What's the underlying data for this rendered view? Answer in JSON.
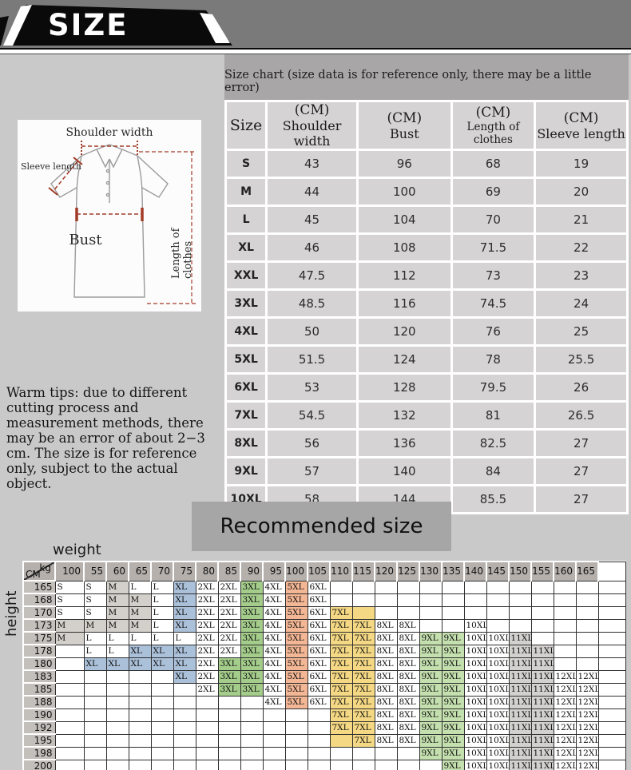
{
  "header": {
    "title": "SIZE"
  },
  "size_chart": {
    "banner": "Size chart (size data is for reference only, there may be a little error)",
    "size_header": "Size",
    "columns": [
      {
        "unit": "(CM)",
        "label": "Shoulder width"
      },
      {
        "unit": "(CM)",
        "label": "Bust"
      },
      {
        "unit": "(CM)",
        "label": "Length of clothes"
      },
      {
        "unit": "(CM)",
        "label": "Sleeve length"
      }
    ],
    "rows": [
      {
        "size": "S",
        "values": [
          "43",
          "96",
          "68",
          "19"
        ]
      },
      {
        "size": "M",
        "values": [
          "44",
          "100",
          "69",
          "20"
        ]
      },
      {
        "size": "L",
        "values": [
          "45",
          "104",
          "70",
          "21"
        ]
      },
      {
        "size": "XL",
        "values": [
          "46",
          "108",
          "71.5",
          "22"
        ]
      },
      {
        "size": "XXL",
        "values": [
          "47.5",
          "112",
          "73",
          "23"
        ]
      },
      {
        "size": "3XL",
        "values": [
          "48.5",
          "116",
          "74.5",
          "24"
        ]
      },
      {
        "size": "4XL",
        "values": [
          "50",
          "120",
          "76",
          "25"
        ]
      },
      {
        "size": "5XL",
        "values": [
          "51.5",
          "124",
          "78",
          "25.5"
        ]
      },
      {
        "size": "6XL",
        "values": [
          "53",
          "128",
          "79.5",
          "26"
        ]
      },
      {
        "size": "7XL",
        "values": [
          "54.5",
          "132",
          "81",
          "26.5"
        ]
      },
      {
        "size": "8XL",
        "values": [
          "56",
          "136",
          "82.5",
          "27"
        ]
      },
      {
        "size": "9XL",
        "values": [
          "57",
          "140",
          "84",
          "27"
        ]
      },
      {
        "size": "10XL",
        "values": [
          "58",
          "144",
          "85.5",
          "27"
        ]
      }
    ]
  },
  "diagram": {
    "shoulder_label": "Shoulder width",
    "sleeve_label": "Sleeve length",
    "bust_label": "Bust",
    "length_label": "Length of clothes"
  },
  "tips": {
    "text": "Warm tips: due to different cutting process and measurement methods, there may be an error of about 2−3 cm. The size is for reference only, subject to the actual object."
  },
  "recommended": {
    "title": "Recommended size",
    "weight_label": "weight",
    "height_label": "height",
    "kg_label": "kg",
    "cm_label": "CM",
    "weights": [
      "100",
      "55",
      "60",
      "65",
      "70",
      "75",
      "80",
      "85",
      "90",
      "95",
      "100",
      "105",
      "110",
      "115",
      "120",
      "125",
      "130",
      "135",
      "140",
      "145",
      "150",
      "155",
      "160",
      "165",
      ""
    ],
    "rows": [
      {
        "height": "165",
        "cells": [
          "S",
          "S",
          "M",
          "L",
          "L",
          "XL",
          "2XL",
          "2XL",
          "3XL",
          "4XL",
          "5XL",
          "6XL",
          "",
          "",
          "",
          "",
          "",
          "",
          "",
          "",
          "",
          "",
          "",
          "",
          ""
        ]
      },
      {
        "height": "168",
        "cells": [
          "S",
          "S",
          "M",
          "M",
          "L",
          "XL",
          "2XL",
          "2XL",
          "3XL",
          "4XL",
          "5XL",
          "6XL",
          "",
          "",
          "",
          "",
          "",
          "",
          "",
          "",
          "",
          "",
          "",
          "",
          ""
        ]
      },
      {
        "height": "170",
        "cells": [
          "S",
          "S",
          "M",
          "M",
          "L",
          "XL",
          "2XL",
          "2XL",
          "3XL",
          "4XL",
          "5XL",
          "6XL",
          "7XL",
          "",
          "",
          "",
          "",
          "",
          "",
          "",
          "",
          "",
          "",
          "",
          ""
        ]
      },
      {
        "height": "173",
        "cells": [
          "M",
          "M",
          "M",
          "M",
          "L",
          "XL",
          "2XL",
          "2XL",
          "3XL",
          "4XL",
          "5XL",
          "6XL",
          "7XL",
          "7XL",
          "8XL",
          "8XL",
          "",
          "",
          "10XL",
          "",
          "",
          "",
          "",
          "",
          ""
        ]
      },
      {
        "height": "175",
        "cells": [
          "M",
          "L",
          "L",
          "L",
          "L",
          "L",
          "2XL",
          "2XL",
          "3XL",
          "4XL",
          "5XL",
          "6XL",
          "7XL",
          "7XL",
          "8XL",
          "8XL",
          "9XL",
          "9XL",
          "10XL",
          "10XL",
          "11XL",
          "",
          "",
          "",
          ""
        ]
      },
      {
        "height": "178",
        "cells": [
          "",
          "L",
          "L",
          "XL",
          "XL",
          "XL",
          "2XL",
          "2XL",
          "3XL",
          "4XL",
          "5XL",
          "6XL",
          "7XL",
          "7XL",
          "8XL",
          "8XL",
          "9XL",
          "9XL",
          "10XL",
          "10XL",
          "11XL",
          "11XL",
          "",
          "",
          ""
        ]
      },
      {
        "height": "180",
        "cells": [
          "",
          "XL",
          "XL",
          "XL",
          "XL",
          "XL",
          "2XL",
          "3XL",
          "3XL",
          "4XL",
          "5XL",
          "6XL",
          "7XL",
          "7XL",
          "8XL",
          "8XL",
          "9XL",
          "9XL",
          "10XL",
          "10XL",
          "11XL",
          "11XL",
          "",
          "",
          ""
        ]
      },
      {
        "height": "183",
        "cells": [
          "",
          "",
          "",
          "",
          "",
          "XL",
          "2XL",
          "3XL",
          "3XL",
          "4XL",
          "5XL",
          "6XL",
          "7XL",
          "7XL",
          "8XL",
          "8XL",
          "9XL",
          "9XL",
          "10XL",
          "10XL",
          "11XL",
          "11XL",
          "12XL",
          "12XL",
          ""
        ]
      },
      {
        "height": "185",
        "cells": [
          "",
          "",
          "",
          "",
          "",
          "",
          "2XL",
          "3XL",
          "3XL",
          "4XL",
          "5XL",
          "6XL",
          "7XL",
          "7XL",
          "8XL",
          "8XL",
          "9XL",
          "9XL",
          "10XL",
          "10XL",
          "11XL",
          "11XL",
          "12XL",
          "12XL",
          ""
        ]
      },
      {
        "height": "188",
        "cells": [
          "",
          "",
          "",
          "",
          "",
          "",
          "",
          "",
          "",
          "4XL",
          "5XL",
          "6XL",
          "7XL",
          "7XL",
          "8XL",
          "8XL",
          "9XL",
          "9XL",
          "10XL",
          "10XL",
          "11XL",
          "11XL",
          "12XL",
          "12XL",
          ""
        ]
      },
      {
        "height": "190",
        "cells": [
          "",
          "",
          "",
          "",
          "",
          "",
          "",
          "",
          "",
          "",
          "",
          "",
          "7XL",
          "7XL",
          "8XL",
          "8XL",
          "9XL",
          "9XL",
          "10XL",
          "10XL",
          "11XL",
          "11XL",
          "12XL",
          "12XL",
          ""
        ]
      },
      {
        "height": "192",
        "cells": [
          "",
          "",
          "",
          "",
          "",
          "",
          "",
          "",
          "",
          "",
          "",
          "",
          "7XL",
          "7XL",
          "8XL",
          "8XL",
          "9XL",
          "9XL",
          "10XL",
          "10XL",
          "11XL",
          "11XL",
          "12XL",
          "12XL",
          ""
        ]
      },
      {
        "height": "195",
        "cells": [
          "",
          "",
          "",
          "",
          "",
          "",
          "",
          "",
          "",
          "",
          "",
          "",
          "",
          "7XL",
          "8XL",
          "8XL",
          "9XL",
          "9XL",
          "10XL",
          "10XL",
          "11XL",
          "11XL",
          "12XL",
          "12XL",
          ""
        ]
      },
      {
        "height": "198",
        "cells": [
          "",
          "",
          "",
          "",
          "",
          "",
          "",
          "",
          "",
          "",
          "",
          "",
          "",
          "",
          "",
          "",
          "9XL",
          "9XL",
          "10XL",
          "10XL",
          "11XL",
          "11XL",
          "12XL",
          "12XL",
          ""
        ]
      },
      {
        "height": "200",
        "cells": [
          "",
          "",
          "",
          "",
          "",
          "",
          "",
          "",
          "",
          "",
          "",
          "",
          "",
          "",
          "",
          "",
          "",
          "9XL",
          "10XL",
          "10XL",
          "11XL",
          "11XL",
          "12XL",
          "12XL",
          ""
        ]
      },
      {
        "height": "",
        "cells": [
          "",
          "",
          "",
          "",
          "",
          "",
          "",
          "",
          "",
          "",
          "",
          "",
          "",
          "",
          "",
          "",
          "",
          "",
          "",
          "",
          "",
          "",
          "",
          "",
          ""
        ]
      }
    ],
    "highlight_cells": [
      {
        "height": "170",
        "col": 13
      },
      {
        "height": "195",
        "col": 12
      }
    ],
    "highlight_color": "#f4d884",
    "size_colors": {
      "M": "#d3cfca",
      "XL": "#abc0d9",
      "3XL": "#a4cd8b",
      "5XL": "#f4b795",
      "7XL": "#f4d884",
      "9XL": "#c4e0ae",
      "11XL": "#d3d1cf"
    }
  },
  "colors": {
    "page_bg": "#c9c9c9",
    "top_strip_bg": "#7a7a7a",
    "banner_black": "#0a0a0a",
    "table_banner_gray": "#a8a6a6",
    "table_cell_gray": "#d5d3d3",
    "measure_line_red": "#a23b26"
  }
}
